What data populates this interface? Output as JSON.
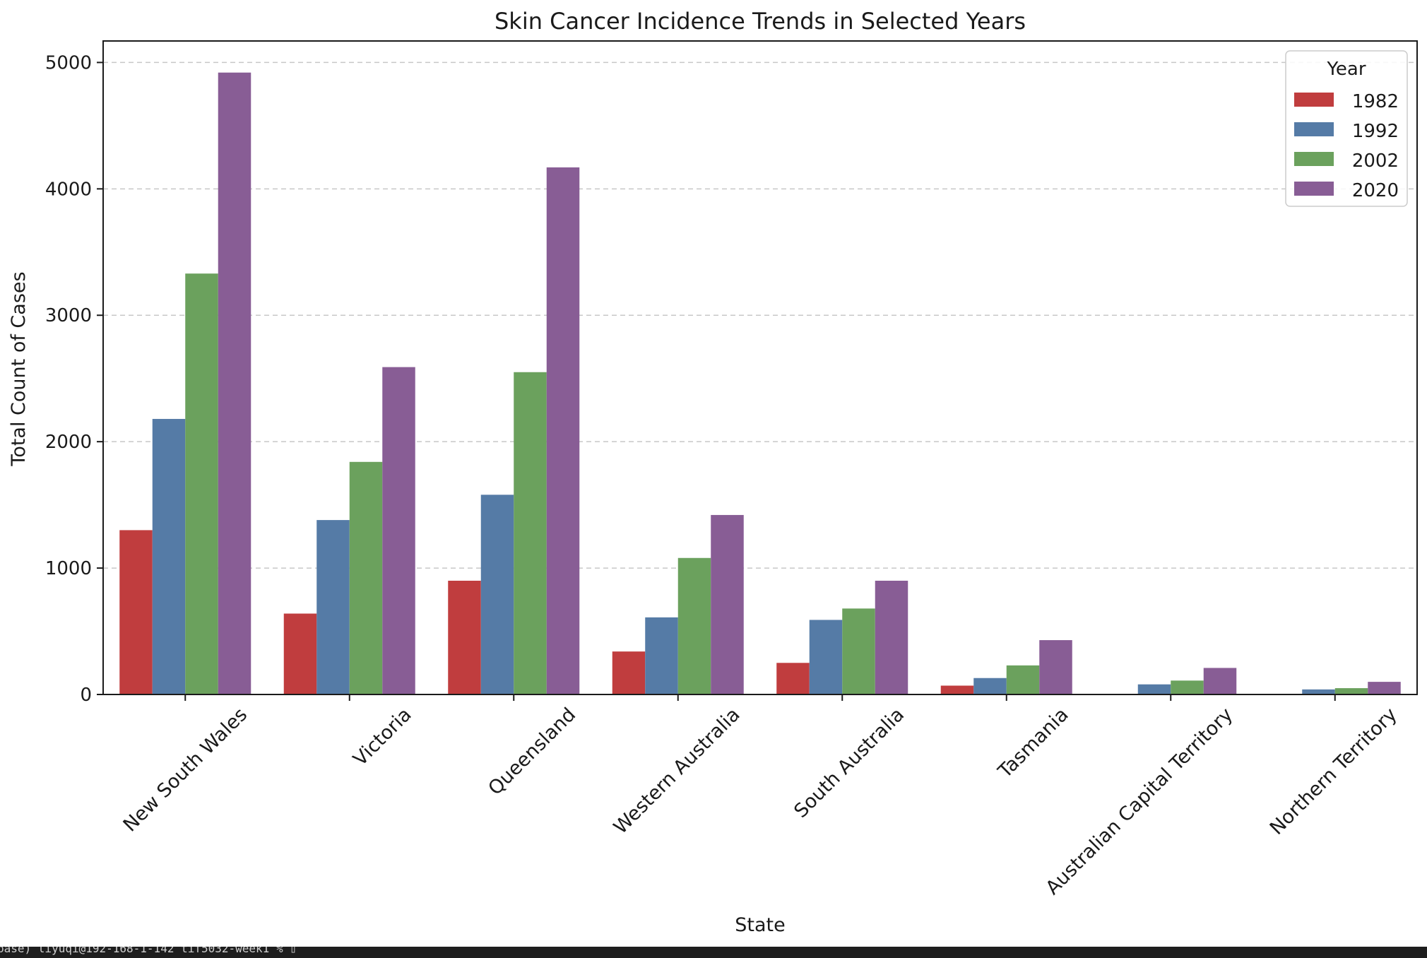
{
  "chart_data": {
    "type": "bar",
    "title": "Skin Cancer Incidence Trends in Selected Years",
    "xlabel": "State",
    "ylabel": "Total Count of Cases",
    "categories": [
      "New South Wales",
      "Victoria",
      "Queensland",
      "Western Australia",
      "South Australia",
      "Tasmania",
      "Australian Capital Territory",
      "Northern Territory"
    ],
    "series": [
      {
        "name": "1982",
        "color": "#c03d3e",
        "values": [
          1300,
          640,
          900,
          340,
          250,
          70,
          0,
          0
        ]
      },
      {
        "name": "1992",
        "color": "#557ba6",
        "values": [
          2180,
          1380,
          1580,
          610,
          590,
          130,
          80,
          40
        ]
      },
      {
        "name": "2002",
        "color": "#6ba15d",
        "values": [
          3330,
          1840,
          2550,
          1080,
          680,
          230,
          110,
          50
        ]
      },
      {
        "name": "2020",
        "color": "#885d95",
        "values": [
          4920,
          2590,
          4170,
          1420,
          900,
          430,
          210,
          100
        ]
      }
    ],
    "ylim": [
      0,
      5170
    ],
    "yticks": [
      0,
      1000,
      2000,
      3000,
      4000,
      5000
    ],
    "grid": "y-dashed",
    "legend": {
      "title": "Year",
      "position": "top-right"
    }
  },
  "terminal": {
    "text": "base) liyuqi@192-168-1-142 tif5032-week1 % ▯"
  }
}
